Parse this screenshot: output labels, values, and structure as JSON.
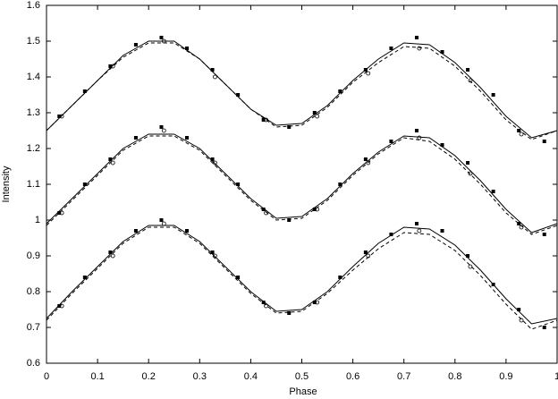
{
  "chart_data": {
    "type": "line",
    "x_label": "Phase",
    "y_label": "Intensity",
    "xlim": [
      0,
      1
    ],
    "ylim": [
      0.6,
      1.6
    ],
    "xticks": [
      0,
      0.1,
      0.2,
      0.3,
      0.4,
      0.5,
      0.6,
      0.7,
      0.8,
      0.9,
      1
    ],
    "yticks": [
      0.6,
      0.7,
      0.8,
      0.9,
      1,
      1.1,
      1.2,
      1.3,
      1.4,
      1.5,
      1.6
    ],
    "x": [
      0,
      0.05,
      0.1,
      0.15,
      0.2,
      0.25,
      0.3,
      0.35,
      0.4,
      0.45,
      0.5,
      0.55,
      0.6,
      0.65,
      0.7,
      0.75,
      0.8,
      0.85,
      0.9,
      0.95,
      1
    ],
    "series": [
      {
        "kind": "curve",
        "style": "solid",
        "color": "#000000",
        "values": [
          1.25,
          1.32,
          1.39,
          1.46,
          1.5,
          1.5,
          1.45,
          1.38,
          1.31,
          1.265,
          1.27,
          1.32,
          1.39,
          1.45,
          1.495,
          1.49,
          1.44,
          1.37,
          1.29,
          1.23,
          1.25
        ]
      },
      {
        "kind": "curve",
        "style": "dashed",
        "color": "#000000",
        "values": [
          1.25,
          1.32,
          1.39,
          1.455,
          1.495,
          1.495,
          1.45,
          1.38,
          1.31,
          1.26,
          1.265,
          1.315,
          1.385,
          1.44,
          1.485,
          1.48,
          1.43,
          1.36,
          1.28,
          1.225,
          1.25
        ]
      },
      {
        "kind": "curve",
        "style": "solid",
        "color": "#000000",
        "values": [
          0.99,
          1.06,
          1.13,
          1.2,
          1.24,
          1.24,
          1.2,
          1.13,
          1.06,
          1.005,
          1.01,
          1.06,
          1.13,
          1.19,
          1.235,
          1.23,
          1.18,
          1.11,
          1.03,
          0.965,
          0.99
        ]
      },
      {
        "kind": "curve",
        "style": "dashed",
        "color": "#000000",
        "values": [
          0.985,
          1.055,
          1.125,
          1.195,
          1.235,
          1.235,
          1.195,
          1.125,
          1.055,
          1.0,
          1.005,
          1.055,
          1.125,
          1.185,
          1.23,
          1.22,
          1.17,
          1.1,
          1.02,
          0.96,
          0.985
        ]
      },
      {
        "kind": "curve",
        "style": "solid",
        "color": "#000000",
        "values": [
          0.725,
          0.8,
          0.87,
          0.94,
          0.985,
          0.985,
          0.94,
          0.87,
          0.8,
          0.745,
          0.75,
          0.8,
          0.87,
          0.935,
          0.98,
          0.975,
          0.93,
          0.86,
          0.78,
          0.71,
          0.725
        ]
      },
      {
        "kind": "curve",
        "style": "dashed",
        "color": "#000000",
        "values": [
          0.72,
          0.795,
          0.865,
          0.935,
          0.98,
          0.98,
          0.935,
          0.865,
          0.795,
          0.74,
          0.745,
          0.795,
          0.86,
          0.92,
          0.965,
          0.96,
          0.915,
          0.845,
          0.765,
          0.695,
          0.72
        ]
      },
      {
        "kind": "points",
        "marker": "square",
        "color": "#000000",
        "x": [
          0.025,
          0.075,
          0.125,
          0.175,
          0.225,
          0.275,
          0.325,
          0.375,
          0.425,
          0.475,
          0.525,
          0.575,
          0.625,
          0.675,
          0.725,
          0.775,
          0.825,
          0.875,
          0.925,
          0.975
        ],
        "values": [
          1.29,
          1.36,
          1.43,
          1.49,
          1.51,
          1.48,
          1.42,
          1.35,
          1.28,
          1.26,
          1.3,
          1.36,
          1.42,
          1.48,
          1.51,
          1.47,
          1.42,
          1.35,
          1.25,
          1.22
        ]
      },
      {
        "kind": "points",
        "marker": "circle",
        "color": "#000000",
        "x": [
          0.03,
          0.13,
          0.23,
          0.33,
          0.43,
          0.53,
          0.63,
          0.73,
          0.83,
          0.93
        ],
        "values": [
          1.29,
          1.43,
          1.5,
          1.4,
          1.28,
          1.29,
          1.41,
          1.48,
          1.39,
          1.24
        ]
      },
      {
        "kind": "points",
        "marker": "square",
        "color": "#000000",
        "x": [
          0.025,
          0.075,
          0.125,
          0.175,
          0.225,
          0.275,
          0.325,
          0.375,
          0.425,
          0.475,
          0.525,
          0.575,
          0.625,
          0.675,
          0.725,
          0.775,
          0.825,
          0.875,
          0.925,
          0.975
        ],
        "values": [
          1.02,
          1.1,
          1.17,
          1.23,
          1.26,
          1.23,
          1.17,
          1.1,
          1.03,
          1.0,
          1.03,
          1.1,
          1.17,
          1.22,
          1.25,
          1.21,
          1.16,
          1.08,
          0.99,
          0.96
        ]
      },
      {
        "kind": "points",
        "marker": "circle",
        "color": "#000000",
        "x": [
          0.03,
          0.13,
          0.23,
          0.33,
          0.43,
          0.53,
          0.63,
          0.73,
          0.83,
          0.93
        ],
        "values": [
          1.02,
          1.16,
          1.25,
          1.16,
          1.02,
          1.03,
          1.16,
          1.23,
          1.13,
          0.98
        ]
      },
      {
        "kind": "points",
        "marker": "square",
        "color": "#000000",
        "x": [
          0.025,
          0.075,
          0.125,
          0.175,
          0.225,
          0.275,
          0.325,
          0.375,
          0.425,
          0.475,
          0.525,
          0.575,
          0.625,
          0.675,
          0.725,
          0.775,
          0.825,
          0.875,
          0.925,
          0.975
        ],
        "values": [
          0.76,
          0.84,
          0.91,
          0.97,
          1.0,
          0.97,
          0.91,
          0.84,
          0.77,
          0.74,
          0.77,
          0.84,
          0.91,
          0.96,
          0.99,
          0.97,
          0.9,
          0.82,
          0.75,
          0.7
        ]
      },
      {
        "kind": "points",
        "marker": "circle",
        "color": "#000000",
        "x": [
          0.03,
          0.13,
          0.23,
          0.33,
          0.43,
          0.53,
          0.63,
          0.73,
          0.83,
          0.93
        ],
        "values": [
          0.76,
          0.9,
          0.99,
          0.9,
          0.76,
          0.77,
          0.9,
          0.97,
          0.87,
          0.72
        ]
      }
    ]
  }
}
